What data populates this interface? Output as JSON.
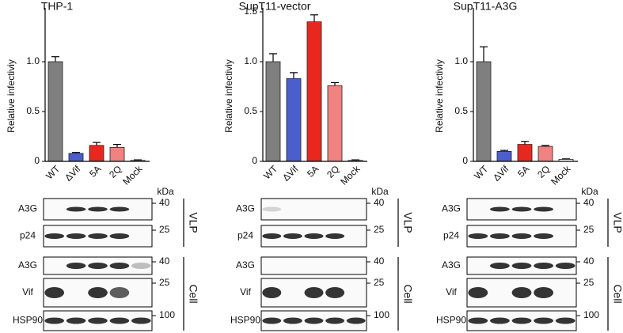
{
  "chart_data": [
    {
      "type": "bar",
      "title": "THP-1",
      "y_label": "Relative infectiviy",
      "categories": [
        "WT",
        "ΔVif",
        "5A",
        "2Q",
        "Mock"
      ],
      "values": [
        1.0,
        0.08,
        0.16,
        0.14,
        0.01
      ],
      "errors": [
        0.05,
        0.01,
        0.03,
        0.03,
        0.005
      ],
      "colors": [
        "#7f7f7f",
        "#4a5fcc",
        "#e8281e",
        "#f08282",
        "#ffffff"
      ],
      "ylim": [
        0,
        1.5
      ],
      "yticks": [
        0,
        0.5,
        {
          "value": 1,
          "label": "1.0"
        }
      ]
    },
    {
      "type": "bar",
      "title": "SupT11-vector",
      "y_label": "Relative infectiviy",
      "categories": [
        "WT",
        "ΔVif",
        "5A",
        "2Q",
        "Mock"
      ],
      "values": [
        1.0,
        0.83,
        1.4,
        0.76,
        0.01
      ],
      "errors": [
        0.08,
        0.06,
        0.07,
        0.03,
        0.005
      ],
      "colors": [
        "#7f7f7f",
        "#4a5fcc",
        "#e8281e",
        "#f08282",
        "#ffffff"
      ],
      "ylim": [
        0,
        1.5
      ],
      "yticks": [
        0,
        0.5,
        {
          "value": 1,
          "label": "1.0"
        },
        1.5
      ]
    },
    {
      "type": "bar",
      "title": "SupT11-A3G",
      "y_label": "Relative infectiviy",
      "categories": [
        "WT",
        "ΔVif",
        "5A",
        "2Q",
        "Mock"
      ],
      "values": [
        1.0,
        0.1,
        0.17,
        0.15,
        0.02
      ],
      "errors": [
        0.15,
        0.01,
        0.03,
        0.01,
        0.005
      ],
      "colors": [
        "#7f7f7f",
        "#4a5fcc",
        "#e8281e",
        "#f08282",
        "#ffffff"
      ],
      "ylim": [
        0,
        1.5
      ],
      "yticks": [
        0,
        0.5,
        {
          "value": 1,
          "label": "1.0"
        }
      ]
    }
  ],
  "blots": {
    "kda_label": "kDa",
    "rows": [
      {
        "label": "A3G",
        "marker": 40
      },
      {
        "label": "p24",
        "marker": 25
      },
      {
        "label": "A3G",
        "marker": 40
      },
      {
        "label": "Vif",
        "marker": 25
      },
      {
        "label": "HSP90",
        "marker": 100
      }
    ],
    "groups": [
      "VLP",
      "Cell"
    ]
  }
}
